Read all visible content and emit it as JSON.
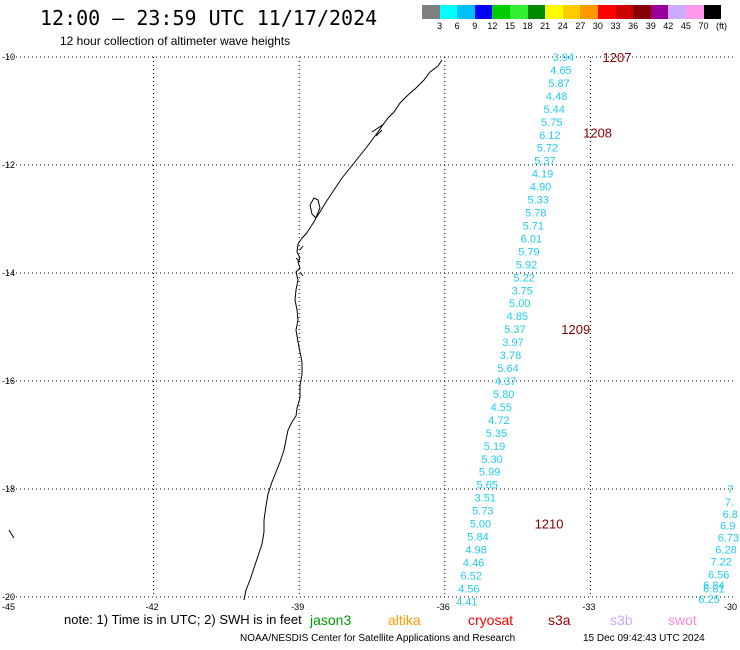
{
  "title": "12:00 – 23:59 UTC 11/17/2024",
  "subtitle": "12 hour collection of altimeter wave heights",
  "scale": {
    "labels": [
      "3",
      "6",
      "9",
      "12",
      "15",
      "18",
      "21",
      "24",
      "27",
      "30",
      "33",
      "36",
      "39",
      "42",
      "45",
      "70"
    ],
    "unit": "(ft)",
    "colors": [
      "#808080",
      "#00ffff",
      "#00bfff",
      "#0000ff",
      "#00cc00",
      "#33ee33",
      "#008800",
      "#ffff00",
      "#ffcc00",
      "#ff9900",
      "#ff0000",
      "#cc0000",
      "#880000",
      "#990099",
      "#ccaaff",
      "#ff99ee",
      "#000000"
    ]
  },
  "axes": {
    "lat_labels": [
      "-10",
      "-12",
      "-14",
      "-16",
      "-18",
      "-20"
    ],
    "lon_labels": [
      "-45",
      "-42",
      "-39",
      "-36",
      "-33",
      "-30"
    ]
  },
  "track_main": [
    {
      "v": "3.94",
      "lat": -10.0,
      "lon": -33.55
    },
    {
      "v": "4.65",
      "lat": -10.24,
      "lon": -33.6
    },
    {
      "v": "5.87",
      "lat": -10.48,
      "lon": -33.64
    },
    {
      "v": "4.48",
      "lat": -10.72,
      "lon": -33.69
    },
    {
      "v": "5.44",
      "lat": -10.96,
      "lon": -33.74
    },
    {
      "v": "5.75",
      "lat": -11.2,
      "lon": -33.79
    },
    {
      "v": "6.12",
      "lat": -11.44,
      "lon": -33.83
    },
    {
      "v": "5.72",
      "lat": -11.68,
      "lon": -33.88
    },
    {
      "v": "5.37",
      "lat": -11.92,
      "lon": -33.93
    },
    {
      "v": "4.19",
      "lat": -12.16,
      "lon": -33.98
    },
    {
      "v": "4.90",
      "lat": -12.4,
      "lon": -34.02
    },
    {
      "v": "5.33",
      "lat": -12.64,
      "lon": -34.07
    },
    {
      "v": "5.78",
      "lat": -12.88,
      "lon": -34.12
    },
    {
      "v": "5.71",
      "lat": -13.12,
      "lon": -34.17
    },
    {
      "v": "6.01",
      "lat": -13.36,
      "lon": -34.21
    },
    {
      "v": "5.79",
      "lat": -13.6,
      "lon": -34.26
    },
    {
      "v": "5.92",
      "lat": -13.84,
      "lon": -34.31
    },
    {
      "v": "5.22",
      "lat": -14.08,
      "lon": -34.36
    },
    {
      "v": "3.75",
      "lat": -14.32,
      "lon": -34.4
    },
    {
      "v": "5.00",
      "lat": -14.56,
      "lon": -34.45
    },
    {
      "v": "4.85",
      "lat": -14.8,
      "lon": -34.5
    },
    {
      "v": "5.37",
      "lat": -15.04,
      "lon": -34.55
    },
    {
      "v": "3.97",
      "lat": -15.28,
      "lon": -34.59
    },
    {
      "v": "3.78",
      "lat": -15.52,
      "lon": -34.64
    },
    {
      "v": "5.64",
      "lat": -15.76,
      "lon": -34.69
    },
    {
      "v": "4.37",
      "lat": -16.0,
      "lon": -34.74
    },
    {
      "v": "5.80",
      "lat": -16.24,
      "lon": -34.78
    },
    {
      "v": "4.55",
      "lat": -16.48,
      "lon": -34.83
    },
    {
      "v": "4.72",
      "lat": -16.72,
      "lon": -34.88
    },
    {
      "v": "5.35",
      "lat": -16.96,
      "lon": -34.93
    },
    {
      "v": "5.19",
      "lat": -17.2,
      "lon": -34.97
    },
    {
      "v": "5.30",
      "lat": -17.44,
      "lon": -35.02
    },
    {
      "v": "5.99",
      "lat": -17.68,
      "lon": -35.07
    },
    {
      "v": "5.65",
      "lat": -17.92,
      "lon": -35.12
    },
    {
      "v": "3.51",
      "lat": -18.16,
      "lon": -35.16
    },
    {
      "v": "5.73",
      "lat": -18.4,
      "lon": -35.21
    },
    {
      "v": "5.00",
      "lat": -18.64,
      "lon": -35.26
    },
    {
      "v": "5.84",
      "lat": -18.88,
      "lon": -35.31
    },
    {
      "v": "4.98",
      "lat": -19.12,
      "lon": -35.35
    },
    {
      "v": "4.46",
      "lat": -19.36,
      "lon": -35.4
    },
    {
      "v": "6.52",
      "lat": -19.6,
      "lon": -35.45
    },
    {
      "v": "4.56",
      "lat": -19.84,
      "lon": -35.5
    },
    {
      "v": "4.41",
      "lat": -20.08,
      "lon": -35.54
    }
  ],
  "track_right": [
    {
      "v": "7",
      "lat": -18.0,
      "lon": -29.95
    },
    {
      "v": "7.",
      "lat": -18.24,
      "lon": -30.0
    },
    {
      "v": "6.8",
      "lat": -18.46,
      "lon": -30.05
    },
    {
      "v": "6.9",
      "lat": -18.68,
      "lon": -30.1
    },
    {
      "v": "6.73",
      "lat": -18.9,
      "lon": -30.15
    },
    {
      "v": "6.28",
      "lat": -19.12,
      "lon": -30.2
    },
    {
      "v": "7.22",
      "lat": -19.34,
      "lon": -30.3
    },
    {
      "v": "6.56",
      "lat": -19.58,
      "lon": -30.35
    },
    {
      "v": "6.84",
      "lat": -19.78,
      "lon": -30.45
    },
    {
      "v": "6.81",
      "lat": -19.84,
      "lon": -30.45
    },
    {
      "v": "6.25",
      "lat": -20.04,
      "lon": -30.55
    }
  ],
  "time_labels": [
    {
      "t": "1207",
      "lat": -10.0,
      "lon": -32.75
    },
    {
      "t": "1208",
      "lat": -11.4,
      "lon": -33.15
    },
    {
      "t": "1209",
      "lat": -15.04,
      "lon": -33.6
    },
    {
      "t": "1210",
      "lat": -18.64,
      "lon": -34.15
    }
  ],
  "note": "note: 1) Time is in UTC; 2) SWH is in feet",
  "satellites": [
    {
      "name": "jason3",
      "color": "#009900"
    },
    {
      "name": "altika",
      "color": "#ff9900"
    },
    {
      "name": "cryosat",
      "color": "#ff0000"
    },
    {
      "name": "s3a",
      "color": "#990000"
    },
    {
      "name": "s3b",
      "color": "#c8a8ff"
    },
    {
      "name": "swot",
      "color": "#ff88dd"
    }
  ],
  "footer_left": "NOAA/NESDIS Center for Satellite Applications and Research",
  "footer_right": "15 Dec 09:42:43 UTC 2024"
}
